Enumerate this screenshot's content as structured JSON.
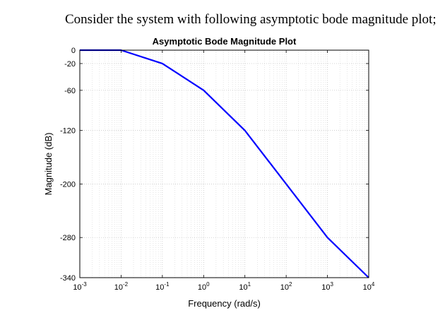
{
  "question": "Consider the system with following asymptotic bode magnitude plot;",
  "chart_data": {
    "type": "line",
    "title": "Asymptotic Bode Magnitude Plot",
    "xlabel": "Frequency (rad/s)",
    "ylabel": "Magnitude (dB)",
    "xscale": "log",
    "xlim": [
      0.001,
      10000
    ],
    "ylim": [
      -340,
      0
    ],
    "xticks": [
      {
        "value": 0.001,
        "base": "10",
        "exp": "-3"
      },
      {
        "value": 0.01,
        "base": "10",
        "exp": "-2"
      },
      {
        "value": 0.1,
        "base": "10",
        "exp": "-1"
      },
      {
        "value": 1,
        "base": "10",
        "exp": "0"
      },
      {
        "value": 10,
        "base": "10",
        "exp": "1"
      },
      {
        "value": 100,
        "base": "10",
        "exp": "2"
      },
      {
        "value": 1000,
        "base": "10",
        "exp": "3"
      },
      {
        "value": 10000,
        "base": "10",
        "exp": "4"
      }
    ],
    "yticks": [
      0,
      -20,
      -60,
      -120,
      -200,
      -280,
      -340
    ],
    "grid": true,
    "line_color": "#0000ff",
    "series": [
      {
        "x": [
          0.001,
          0.01,
          0.1,
          1,
          10,
          1000,
          10000
        ],
        "y": [
          0,
          0,
          -20,
          -60,
          -120,
          -280,
          -340
        ]
      }
    ]
  }
}
